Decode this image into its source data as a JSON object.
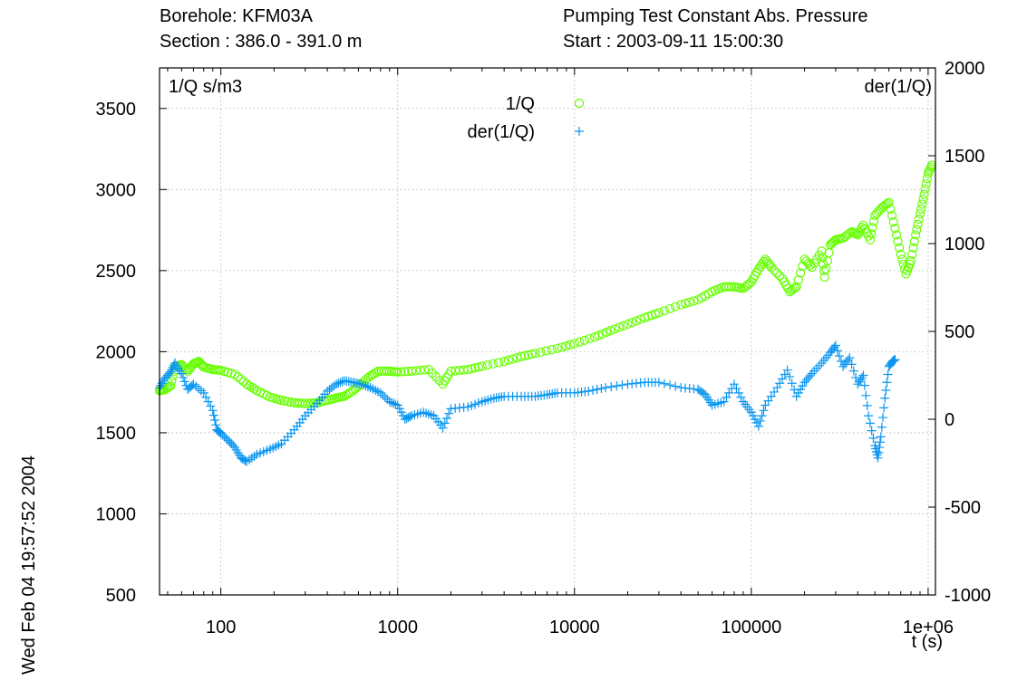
{
  "header": {
    "borehole": "Borehole: KFM03A",
    "section": "Section : 386.0   - 391.0  m",
    "test_type": "Pumping Test Constant Abs. Pressure",
    "start": "Start  : 2003-09-11 15:00:30"
  },
  "timestamp": "Wed Feb 04 19:57:52 2004",
  "chart_data": {
    "type": "scatter",
    "xlabel": "t (s)",
    "x_scale": "log",
    "xlim": [
      45,
      1100000
    ],
    "x_ticks": [
      {
        "value": 100,
        "label": "100"
      },
      {
        "value": 1000,
        "label": "1000"
      },
      {
        "value": 10000,
        "label": "10000"
      },
      {
        "value": 100000,
        "label": "100000"
      },
      {
        "value": 1000000,
        "label": "1e+06"
      }
    ],
    "ylabel_left": "1/Q  s/m3",
    "ylim_left": [
      500,
      3750
    ],
    "y_ticks_left": [
      500,
      1000,
      1500,
      2000,
      2500,
      3000,
      3500
    ],
    "ylabel_right": "der(1/Q)",
    "ylim_right": [
      -1000,
      2000
    ],
    "y_ticks_right": [
      -1000,
      -500,
      0,
      500,
      1000,
      1500,
      2000
    ],
    "grid": true,
    "legend_position": "top-center",
    "series": [
      {
        "name": "1/Q",
        "marker": "circle",
        "color": "#66ff00",
        "axis": "left",
        "points": [
          [
            45,
            1760
          ],
          [
            48,
            1765
          ],
          [
            52,
            1790
          ],
          [
            55,
            1910
          ],
          [
            60,
            1920
          ],
          [
            65,
            1880
          ],
          [
            70,
            1925
          ],
          [
            75,
            1940
          ],
          [
            80,
            1905
          ],
          [
            90,
            1890
          ],
          [
            100,
            1885
          ],
          [
            120,
            1860
          ],
          [
            140,
            1800
          ],
          [
            160,
            1760
          ],
          [
            190,
            1720
          ],
          [
            220,
            1700
          ],
          [
            260,
            1685
          ],
          [
            300,
            1680
          ],
          [
            350,
            1685
          ],
          [
            400,
            1700
          ],
          [
            450,
            1715
          ],
          [
            500,
            1725
          ],
          [
            560,
            1760
          ],
          [
            620,
            1800
          ],
          [
            700,
            1850
          ],
          [
            780,
            1880
          ],
          [
            900,
            1880
          ],
          [
            1000,
            1875
          ],
          [
            1200,
            1880
          ],
          [
            1500,
            1890
          ],
          [
            1800,
            1800
          ],
          [
            2000,
            1880
          ],
          [
            2500,
            1890
          ],
          [
            3000,
            1910
          ],
          [
            4000,
            1940
          ],
          [
            5000,
            1970
          ],
          [
            6000,
            1990
          ],
          [
            8000,
            2020
          ],
          [
            10000,
            2050
          ],
          [
            13000,
            2090
          ],
          [
            16000,
            2130
          ],
          [
            20000,
            2170
          ],
          [
            25000,
            2210
          ],
          [
            30000,
            2240
          ],
          [
            40000,
            2290
          ],
          [
            50000,
            2320
          ],
          [
            60000,
            2370
          ],
          [
            70000,
            2400
          ],
          [
            80000,
            2400
          ],
          [
            90000,
            2390
          ],
          [
            100000,
            2430
          ],
          [
            110000,
            2510
          ],
          [
            120000,
            2570
          ],
          [
            130000,
            2520
          ],
          [
            150000,
            2450
          ],
          [
            165000,
            2370
          ],
          [
            180000,
            2400
          ],
          [
            200000,
            2570
          ],
          [
            220000,
            2520
          ],
          [
            250000,
            2620
          ],
          [
            260000,
            2460
          ],
          [
            280000,
            2660
          ],
          [
            300000,
            2690
          ],
          [
            330000,
            2700
          ],
          [
            370000,
            2740
          ],
          [
            400000,
            2720
          ],
          [
            430000,
            2780
          ],
          [
            470000,
            2690
          ],
          [
            500000,
            2840
          ],
          [
            550000,
            2890
          ],
          [
            600000,
            2920
          ],
          [
            650000,
            2760
          ],
          [
            700000,
            2600
          ],
          [
            750000,
            2480
          ],
          [
            800000,
            2560
          ],
          [
            850000,
            2720
          ],
          [
            900000,
            2850
          ],
          [
            950000,
            2970
          ],
          [
            1000000,
            3100
          ],
          [
            1050000,
            3150
          ]
        ]
      },
      {
        "name": "der(1/Q)",
        "marker": "plus",
        "color": "#0a96f0",
        "axis": "right",
        "points": [
          [
            45,
            180
          ],
          [
            48,
            230
          ],
          [
            52,
            270
          ],
          [
            55,
            320
          ],
          [
            60,
            260
          ],
          [
            65,
            170
          ],
          [
            70,
            200
          ],
          [
            80,
            150
          ],
          [
            90,
            50
          ],
          [
            95,
            -60
          ],
          [
            100,
            -80
          ],
          [
            110,
            -120
          ],
          [
            120,
            -160
          ],
          [
            130,
            -220
          ],
          [
            140,
            -240
          ],
          [
            160,
            -200
          ],
          [
            190,
            -170
          ],
          [
            220,
            -140
          ],
          [
            260,
            -60
          ],
          [
            300,
            20
          ],
          [
            350,
            90
          ],
          [
            400,
            160
          ],
          [
            450,
            200
          ],
          [
            500,
            220
          ],
          [
            560,
            210
          ],
          [
            620,
            200
          ],
          [
            700,
            180
          ],
          [
            800,
            150
          ],
          [
            900,
            100
          ],
          [
            1000,
            80
          ],
          [
            1100,
            0
          ],
          [
            1200,
            20
          ],
          [
            1400,
            40
          ],
          [
            1600,
            20
          ],
          [
            1800,
            -50
          ],
          [
            2000,
            60
          ],
          [
            2500,
            70
          ],
          [
            3000,
            100
          ],
          [
            3500,
            120
          ],
          [
            4000,
            130
          ],
          [
            5000,
            130
          ],
          [
            6000,
            130
          ],
          [
            7000,
            140
          ],
          [
            8000,
            150
          ],
          [
            10000,
            150
          ],
          [
            12000,
            160
          ],
          [
            15000,
            180
          ],
          [
            20000,
            200
          ],
          [
            25000,
            210
          ],
          [
            30000,
            210
          ],
          [
            40000,
            180
          ],
          [
            50000,
            170
          ],
          [
            55000,
            140
          ],
          [
            60000,
            80
          ],
          [
            70000,
            100
          ],
          [
            80000,
            200
          ],
          [
            90000,
            100
          ],
          [
            100000,
            40
          ],
          [
            110000,
            -40
          ],
          [
            120000,
            80
          ],
          [
            140000,
            180
          ],
          [
            160000,
            280
          ],
          [
            180000,
            130
          ],
          [
            200000,
            210
          ],
          [
            220000,
            260
          ],
          [
            250000,
            320
          ],
          [
            280000,
            380
          ],
          [
            300000,
            420
          ],
          [
            330000,
            300
          ],
          [
            360000,
            350
          ],
          [
            400000,
            200
          ],
          [
            430000,
            250
          ],
          [
            460000,
            20
          ],
          [
            500000,
            -150
          ],
          [
            520000,
            -220
          ],
          [
            540000,
            -100
          ],
          [
            570000,
            120
          ],
          [
            600000,
            300
          ],
          [
            630000,
            330
          ],
          [
            650000,
            340
          ]
        ]
      }
    ]
  },
  "colors": {
    "series_1q": "#66ff00",
    "series_der": "#0a96f0",
    "grid": "#b0b0b0",
    "axes": "#000000"
  }
}
